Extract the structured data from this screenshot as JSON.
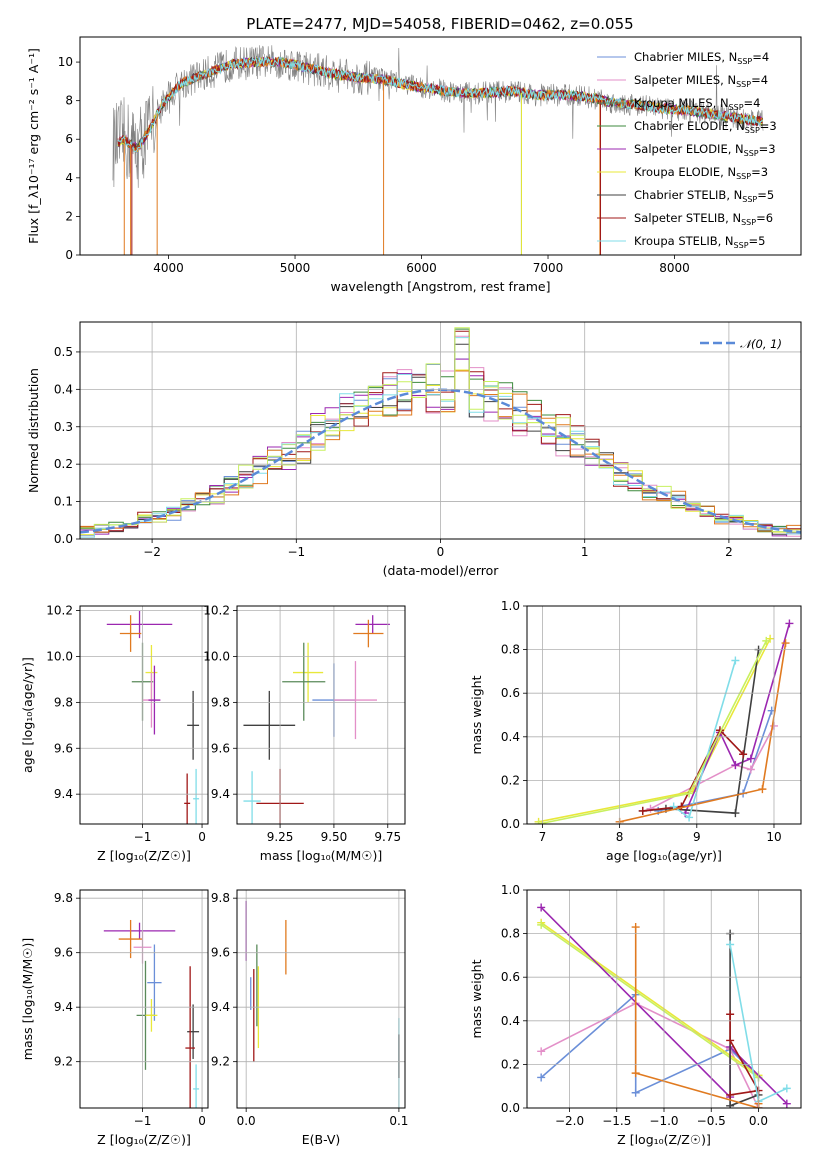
{
  "title": "PLATE=2477, MJD=54058, FIBERID=0462, z=0.055",
  "colors": {
    "data": "#808080",
    "series": [
      "#6b8fd8",
      "#e38fc8",
      "#5a8a5a",
      "#3d8a3d",
      "#9b27b0",
      "#e8e83a",
      "#404040",
      "#a01818",
      "#80dde8"
    ],
    "orange": "#e07a20",
    "lime": "#c8f060",
    "grid": "#b0b0b0"
  },
  "chart_data": [
    {
      "type": "line",
      "panel": "spectrum",
      "xlabel": "wavelength [Angstrom, rest frame]",
      "ylabel": "Flux [f_λ10⁻¹⁷ erg cm⁻² s⁻¹ A⁻¹]",
      "xlim": [
        3300,
        9000
      ],
      "ylim": [
        0,
        11.3
      ],
      "xticks": [
        4000,
        5000,
        6000,
        7000,
        8000
      ],
      "yticks": [
        0,
        2,
        4,
        6,
        8,
        10
      ],
      "continuum": {
        "x": [
          3550,
          3650,
          3750,
          3850,
          3950,
          4100,
          4300,
          4500,
          4700,
          4900,
          5100,
          5300,
          5500,
          5700,
          5900,
          6100,
          6300,
          6500,
          6700,
          6900,
          7100,
          7300,
          7500,
          7700,
          7900,
          8100,
          8300,
          8500,
          8700
        ],
        "y": [
          5.6,
          6.0,
          5.5,
          6.5,
          7.8,
          8.9,
          9.4,
          9.9,
          10.0,
          10.0,
          9.7,
          9.4,
          9.2,
          9.1,
          8.8,
          8.6,
          8.4,
          8.4,
          8.5,
          8.3,
          8.3,
          8.2,
          7.9,
          7.8,
          7.6,
          7.5,
          7.3,
          7.1,
          6.9
        ]
      },
      "legend": [
        {
          "name": "Chabrier MILES, N",
          "sub": "SSP",
          "tail": "=4"
        },
        {
          "name": "Salpeter MILES, N",
          "sub": "SSP",
          "tail": "=4"
        },
        {
          "name": "Kroupa MILES, N",
          "sub": "SSP",
          "tail": "=4"
        },
        {
          "name": "Chabrier ELODIE, N",
          "sub": "SSP",
          "tail": "=3"
        },
        {
          "name": "Salpeter ELODIE, N",
          "sub": "SSP",
          "tail": "=3"
        },
        {
          "name": "Kroupa ELODIE, N",
          "sub": "SSP",
          "tail": "=3"
        },
        {
          "name": "Chabrier STELIB, N",
          "sub": "SSP",
          "tail": "=5"
        },
        {
          "name": "Salpeter STELIB, N",
          "sub": "SSP",
          "tail": "=6"
        },
        {
          "name": "Kroupa STELIB, N",
          "sub": "SSP",
          "tail": "=5"
        }
      ]
    },
    {
      "type": "line",
      "panel": "residual-histogram",
      "xlabel": "(data-model)/error",
      "ylabel": "Normed distribution",
      "xlim": [
        -2.5,
        2.5
      ],
      "ylim": [
        0,
        0.58
      ],
      "xticks": [
        -2,
        -1,
        0,
        1,
        2
      ],
      "yticks": [
        0.0,
        0.1,
        0.2,
        0.3,
        0.4,
        0.5
      ],
      "legend": "𝒩(0, 1)",
      "bin_width": 0.1
    },
    {
      "type": "scatter",
      "panel": "age-vs-Z",
      "xlabel": "Z [log₁₀(Z/Z☉)]",
      "ylabel": "age  [log₁₀(age/yr)]",
      "xlim": [
        -2.05,
        0.1
      ],
      "ylim": [
        9.27,
        10.22
      ],
      "xticks": [
        -1,
        0
      ],
      "yticks": [
        9.4,
        9.6,
        9.8,
        10.0,
        10.2
      ],
      "points": [
        {
          "x": -1.05,
          "xerr": 0.55,
          "y": 10.14,
          "yerr": 0.06,
          "c": 4
        },
        {
          "x": -1.2,
          "xerr": 0.18,
          "y": 10.1,
          "yerr": 0.08,
          "c": 9
        },
        {
          "x": -0.85,
          "xerr": 0.1,
          "y": 9.93,
          "yerr": 0.12,
          "c": 5
        },
        {
          "x": -1.0,
          "xerr": 0.18,
          "y": 9.89,
          "yerr": 0.17,
          "c": 2
        },
        {
          "x": -0.85,
          "xerr": 0.15,
          "y": 9.81,
          "yerr": 0.12,
          "c": 1
        },
        {
          "x": -0.8,
          "xerr": 0.1,
          "y": 9.81,
          "yerr": 0.15,
          "c": 4
        },
        {
          "x": -0.15,
          "xerr": 0.1,
          "y": 9.7,
          "yerr": 0.15,
          "c": 6
        },
        {
          "x": -0.25,
          "xerr": 0.05,
          "y": 9.36,
          "yerr": 0.13,
          "c": 7
        },
        {
          "x": -0.1,
          "xerr": 0.05,
          "y": 9.38,
          "yerr": 0.13,
          "c": 8
        }
      ]
    },
    {
      "type": "scatter",
      "panel": "age-vs-mass",
      "xlabel": "mass [log₁₀(M/M☉)]",
      "xlim": [
        9.05,
        9.83
      ],
      "ylim": [
        9.27,
        10.22
      ],
      "xticks": [
        9.25,
        9.5,
        9.75
      ],
      "xticklabels": [
        "9.25",
        "9.50",
        "9.75"
      ],
      "yticks": [
        9.4,
        9.6,
        9.8,
        10.0,
        10.2
      ],
      "points": [
        {
          "x": 9.68,
          "xerr": 0.08,
          "y": 10.14,
          "yerr": 0.04,
          "c": 4
        },
        {
          "x": 9.66,
          "xerr": 0.07,
          "y": 10.1,
          "yerr": 0.06,
          "c": 9
        },
        {
          "x": 9.38,
          "xerr": 0.07,
          "y": 9.93,
          "yerr": 0.13,
          "c": 5
        },
        {
          "x": 9.36,
          "xerr": 0.1,
          "y": 9.89,
          "yerr": 0.17,
          "c": 2
        },
        {
          "x": 9.5,
          "xerr": 0.1,
          "y": 9.81,
          "yerr": 0.16,
          "c": 0
        },
        {
          "x": 9.6,
          "xerr": 0.1,
          "y": 9.81,
          "yerr": 0.17,
          "c": 1
        },
        {
          "x": 9.2,
          "xerr": 0.12,
          "y": 9.7,
          "yerr": 0.15,
          "c": 6
        },
        {
          "x": 9.25,
          "xerr": 0.11,
          "y": 9.36,
          "yerr": 0.15,
          "c": 7
        },
        {
          "x": 9.12,
          "xerr": 0.04,
          "y": 9.37,
          "yerr": 0.13,
          "c": 8
        }
      ]
    },
    {
      "type": "line",
      "panel": "mass-weight-vs-age",
      "xlabel": "age  [log₁₀(age/yr)]",
      "ylabel": "mass weight",
      "xlim": [
        6.8,
        10.35
      ],
      "ylim": [
        0,
        1.0
      ],
      "xticks": [
        7,
        8,
        9,
        10
      ],
      "yticks": [
        0.0,
        0.2,
        0.4,
        0.6,
        0.8,
        1.0
      ],
      "series": [
        {
          "c": 0,
          "x": [
            8.5,
            9.6,
            9.97
          ],
          "y": [
            0.06,
            0.14,
            0.52
          ]
        },
        {
          "c": 1,
          "x": [
            8.4,
            9.5,
            9.7,
            10.0
          ],
          "y": [
            0.07,
            0.27,
            0.25,
            0.45
          ]
        },
        {
          "c": 5,
          "x": [
            6.95,
            8.95,
            9.95
          ],
          "y": [
            0.01,
            0.15,
            0.85
          ]
        },
        {
          "c": 4,
          "x": [
            8.85,
            9.3,
            9.5,
            9.7,
            10.2
          ],
          "y": [
            0.05,
            0.42,
            0.27,
            0.3,
            0.92
          ]
        },
        {
          "c": 6,
          "x": [
            8.3,
            8.6,
            9.5,
            9.8
          ],
          "y": [
            0.06,
            0.07,
            0.05,
            0.8
          ]
        },
        {
          "c": 7,
          "x": [
            8.3,
            8.8,
            9.3,
            9.6
          ],
          "y": [
            0.06,
            0.08,
            0.43,
            0.32
          ]
        },
        {
          "c": 8,
          "x": [
            8.7,
            8.9,
            9.5
          ],
          "y": [
            0.08,
            0.03,
            0.75
          ]
        },
        {
          "c": 9,
          "x": [
            8.0,
            9.85,
            10.15
          ],
          "y": [
            0.01,
            0.16,
            0.83
          ]
        },
        {
          "c": 2,
          "x": [
            6.95,
            8.9,
            9.9
          ],
          "y": [
            0.0,
            0.14,
            0.84
          ]
        }
      ]
    },
    {
      "type": "scatter",
      "panel": "mass-vs-Z",
      "xlabel": "Z [log₁₀(Z/Z☉)]",
      "ylabel": "mass [log₁₀(M/M☉)]",
      "xlim": [
        -2.05,
        0.1
      ],
      "ylim": [
        9.03,
        9.83
      ],
      "xticks": [
        -1,
        0
      ],
      "yticks": [
        9.2,
        9.4,
        9.6,
        9.8
      ],
      "points": [
        {
          "x": -1.05,
          "xerr": 0.6,
          "y": 9.68,
          "yerr": 0.03,
          "c": 4
        },
        {
          "x": -1.2,
          "xerr": 0.2,
          "y": 9.65,
          "yerr": 0.07,
          "c": 9
        },
        {
          "x": -1.0,
          "xerr": 0.15,
          "y": 9.62,
          "yerr": 0.06,
          "c": 1
        },
        {
          "x": -0.8,
          "xerr": 0.12,
          "y": 9.49,
          "yerr": 0.14,
          "c": 0
        },
        {
          "x": -0.95,
          "xerr": 0.15,
          "y": 9.37,
          "yerr": 0.2,
          "c": 2
        },
        {
          "x": -0.85,
          "xerr": 0.1,
          "y": 9.37,
          "yerr": 0.06,
          "c": 5
        },
        {
          "x": -0.15,
          "xerr": 0.1,
          "y": 9.31,
          "yerr": 0.1,
          "c": 6
        },
        {
          "x": -0.2,
          "xerr": 0.08,
          "y": 9.25,
          "yerr": 0.3,
          "c": 7
        },
        {
          "x": -0.1,
          "xerr": 0.05,
          "y": 9.1,
          "yerr": 0.09,
          "c": 8
        }
      ]
    },
    {
      "type": "scatter",
      "panel": "mass-vs-EBV",
      "xlabel": "E(B-V)",
      "xlim": [
        -0.006,
        0.104
      ],
      "ylim": [
        9.03,
        9.83
      ],
      "xticks": [
        0.0,
        0.1
      ],
      "xticklabels": [
        "0.0",
        "0.1"
      ],
      "yticks": [
        9.2,
        9.4,
        9.6,
        9.8
      ],
      "points": [
        {
          "x": 0.0,
          "y": 9.68,
          "yerr": 0.11,
          "c": 4
        },
        {
          "x": 0.003,
          "y": 9.45,
          "yerr": 0.06,
          "c": 0
        },
        {
          "x": 0.005,
          "y": 9.37,
          "yerr": 0.17,
          "c": 7
        },
        {
          "x": 0.007,
          "y": 9.48,
          "yerr": 0.15,
          "c": 2
        },
        {
          "x": 0.008,
          "y": 9.4,
          "yerr": 0.15,
          "c": 5
        },
        {
          "x": 0.026,
          "y": 9.62,
          "yerr": 0.1,
          "c": 9
        },
        {
          "x": 0.1,
          "y": 9.18,
          "yerr": 0.18,
          "c": 8
        },
        {
          "x": 0.1,
          "y": 9.22,
          "yerr": 0.08,
          "c": 6
        }
      ]
    },
    {
      "type": "line",
      "panel": "mass-weight-vs-Z",
      "xlabel": "Z [log₁₀(Z/Z☉)]",
      "ylabel": "mass weight",
      "xlim": [
        -2.45,
        0.45
      ],
      "ylim": [
        0,
        1.0
      ],
      "xticks": [
        -2.0,
        -1.5,
        -1.0,
        -0.5,
        0.0
      ],
      "xticklabels": [
        "−2.0",
        "−1.5",
        "−1.0",
        "−0.5",
        "0.0"
      ],
      "yticks": [
        0.0,
        0.2,
        0.4,
        0.6,
        0.8,
        1.0
      ],
      "series": [
        {
          "c": 0,
          "x": [
            -2.3,
            -1.3,
            -1.3,
            -0.3,
            0.0
          ],
          "y": [
            0.14,
            0.52,
            0.07,
            0.27,
            0.14
          ]
        },
        {
          "c": 1,
          "x": [
            -2.3,
            -1.3,
            -0.3,
            0.0
          ],
          "y": [
            0.26,
            0.48,
            0.27,
            0.0
          ]
        },
        {
          "c": 5,
          "x": [
            -2.3,
            0.0
          ],
          "y": [
            0.85,
            0.15
          ]
        },
        {
          "c": 2,
          "x": [
            -2.3,
            0.0
          ],
          "y": [
            0.84,
            0.14
          ]
        },
        {
          "c": 4,
          "x": [
            -2.3,
            -0.3,
            -0.3,
            0.3
          ],
          "y": [
            0.92,
            0.05,
            0.28,
            0.02
          ]
        },
        {
          "c": 6,
          "x": [
            -0.3,
            -0.3,
            0.0
          ],
          "y": [
            0.8,
            0.01,
            0.06
          ]
        },
        {
          "c": 7,
          "x": [
            -0.3,
            -0.3,
            0.0,
            -0.3
          ],
          "y": [
            0.43,
            0.31,
            0.08,
            0.06
          ]
        },
        {
          "c": 8,
          "x": [
            -0.3,
            0.0,
            0.3
          ],
          "y": [
            0.75,
            0.03,
            0.09
          ]
        },
        {
          "c": 9,
          "x": [
            -1.3,
            -1.3,
            0.0,
            0.0
          ],
          "y": [
            0.83,
            0.16,
            0.0,
            0.02
          ]
        }
      ]
    }
  ]
}
